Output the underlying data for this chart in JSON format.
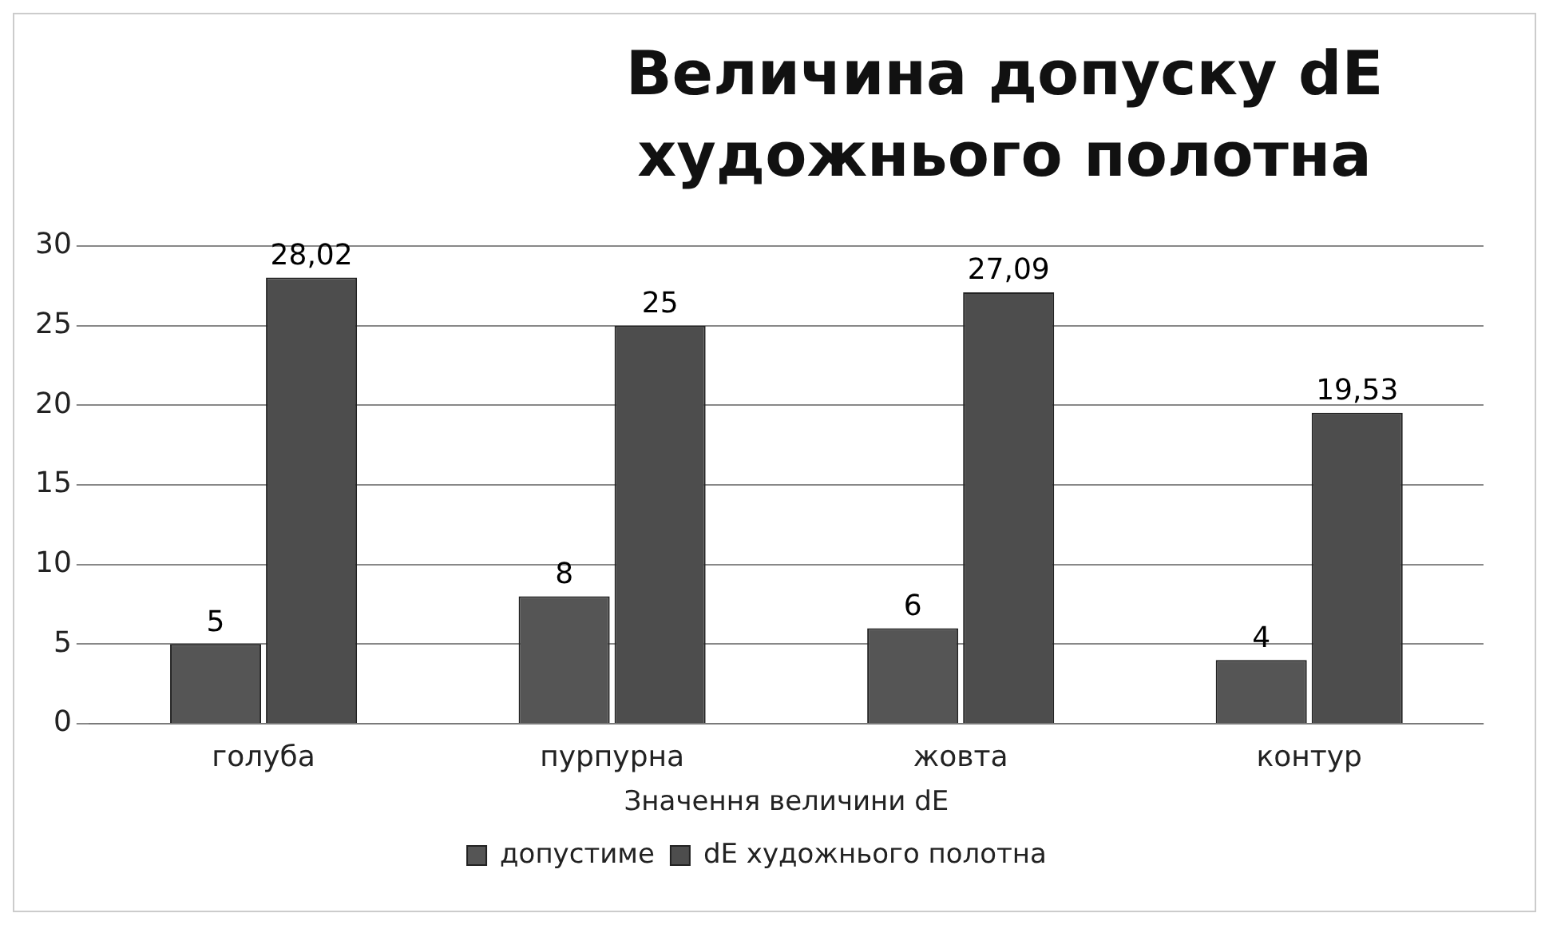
{
  "chart_data": {
    "type": "bar",
    "title": "Величина допуску dE художнього полотна",
    "xlabel": "Значення величини dE",
    "categories": [
      "голуба",
      "пурпурна",
      "жовта",
      "контур"
    ],
    "series": [
      {
        "name": "допустиме",
        "color": "#555555",
        "values": [
          5,
          8,
          6,
          4
        ],
        "value_labels": [
          "5",
          "8",
          "6",
          "4"
        ]
      },
      {
        "name": "dE художнього полотна",
        "color": "#4d4d4d",
        "values": [
          28.02,
          25,
          27.09,
          19.53
        ],
        "value_labels": [
          "28,02",
          "25",
          "27,09",
          "19,53"
        ]
      }
    ],
    "ylim": [
      0,
      30
    ],
    "yticks": [
      0,
      5,
      10,
      15,
      20,
      25,
      30
    ],
    "grid": "y",
    "legend": "bottom"
  }
}
